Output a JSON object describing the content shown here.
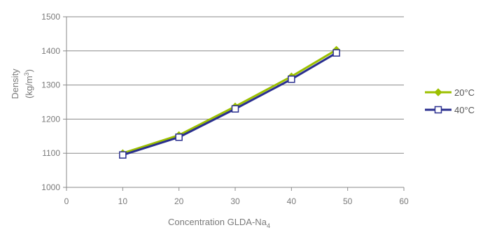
{
  "chart_data": {
    "type": "line",
    "xlabel": "Concentration GLDA-Na",
    "xlabel_sub": "4",
    "ylabel": "Density",
    "ylabel_unit": "(kg/m",
    "ylabel_unit_sup": "3",
    "ylabel_unit_close": ")",
    "xlim": [
      0,
      60
    ],
    "ylim": [
      1000,
      1500
    ],
    "xticks": [
      0,
      10,
      20,
      30,
      40,
      50,
      60
    ],
    "yticks": [
      1000,
      1100,
      1200,
      1300,
      1400,
      1500
    ],
    "grid": "horizontal",
    "legend_position": "right",
    "series": [
      {
        "name": "20°C",
        "color": "#9cc000",
        "marker": "diamond-filled",
        "x": [
          10,
          20,
          30,
          40,
          48
        ],
        "y": [
          1100,
          1153,
          1237,
          1325,
          1403
        ]
      },
      {
        "name": "40°C",
        "color": "#2a2f8f",
        "marker": "square-open",
        "x": [
          10,
          20,
          30,
          40,
          48
        ],
        "y": [
          1095,
          1147,
          1230,
          1317,
          1394
        ]
      }
    ]
  }
}
